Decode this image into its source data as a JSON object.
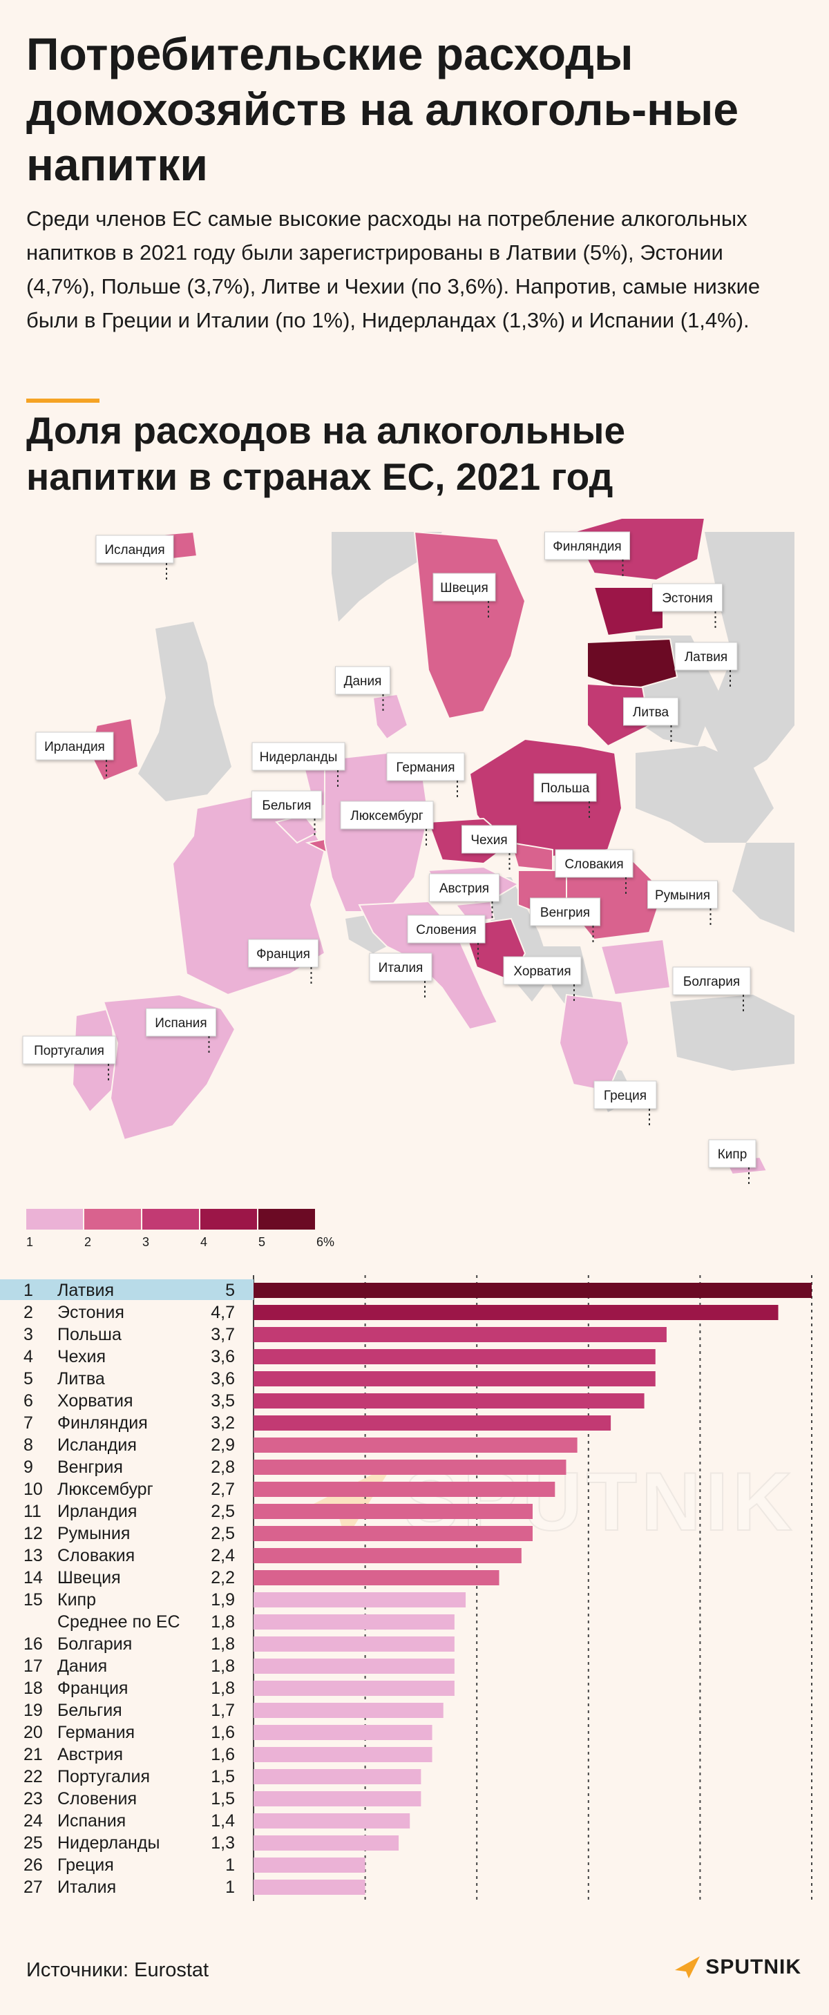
{
  "title": "Потребительские расходы домохозяйств на алкоголь-ные напитки",
  "lead": "Среди членов ЕС самые высокие расходы на потребление алкогольных напитков в 2021 году были зарегистрированы в Латвии (5%), Эстонии (4,7%), Польше (3,7%), Литве и Чехии (по 3,6%). Напротив, самые низкие были в Греции и Италии (по 1%), Нидерландах (1,3%) и Испании (1,4%).",
  "subtitle": "Доля расходов на алкогольные напитки в странах ЕС, 2021 год",
  "colors": {
    "background": "#fdf5ee",
    "accent": "#f5a324",
    "nonEU": "#d6d6d6",
    "highlight_row": "#b8dbe8",
    "scale": [
      "#ebb2d6",
      "#d9628e",
      "#c23a73",
      "#9c1648",
      "#6b0a24"
    ]
  },
  "legend": {
    "ticks": [
      "1",
      "2",
      "3",
      "4",
      "5",
      "6%"
    ]
  },
  "map_labels": [
    "Исландия",
    "Финляндия",
    "Эстония",
    "Швеция",
    "Латвия",
    "Дания",
    "Литва",
    "Ирландия",
    "Нидерланды",
    "Германия",
    "Польша",
    "Бельгия",
    "Люксембург",
    "Чехия",
    "Словакия",
    "Австрия",
    "Румыния",
    "Венгрия",
    "Словения",
    "Франция",
    "Италия",
    "Хорватия",
    "Болгария",
    "Испания",
    "Португалия",
    "Греция",
    "Кипр"
  ],
  "chart_data": {
    "type": "bar",
    "orientation": "horizontal",
    "xlim": [
      0,
      5
    ],
    "x_ticks": [
      "0",
      "1",
      "2",
      "3",
      "4",
      "5"
    ],
    "grid": "vertical dashed",
    "rows": [
      {
        "rank": "1",
        "country": "Латвия",
        "label": "5",
        "value": 5
      },
      {
        "rank": "2",
        "country": "Эстония",
        "label": "4,7",
        "value": 4.7
      },
      {
        "rank": "3",
        "country": "Польша",
        "label": "3,7",
        "value": 3.7
      },
      {
        "rank": "4",
        "country": "Чехия",
        "label": "3,6",
        "value": 3.6
      },
      {
        "rank": "5",
        "country": "Литва",
        "label": "3,6",
        "value": 3.6
      },
      {
        "rank": "6",
        "country": "Хорватия",
        "label": "3,5",
        "value": 3.5
      },
      {
        "rank": "7",
        "country": "Финляндия",
        "label": "3,2",
        "value": 3.2
      },
      {
        "rank": "8",
        "country": "Исландия",
        "label": "2,9",
        "value": 2.9
      },
      {
        "rank": "9",
        "country": "Венгрия",
        "label": "2,8",
        "value": 2.8
      },
      {
        "rank": "10",
        "country": "Люксембург",
        "label": "2,7",
        "value": 2.7
      },
      {
        "rank": "11",
        "country": "Ирландия",
        "label": "2,5",
        "value": 2.5
      },
      {
        "rank": "12",
        "country": "Румыния",
        "label": "2,5",
        "value": 2.5
      },
      {
        "rank": "13",
        "country": "Словакия",
        "label": "2,4",
        "value": 2.4
      },
      {
        "rank": "14",
        "country": "Швеция",
        "label": "2,2",
        "value": 2.2
      },
      {
        "rank": "15",
        "country": "Кипр",
        "label": "1,9",
        "value": 1.9
      },
      {
        "rank": "",
        "country": "Среднее по ЕС",
        "label": "1,8",
        "value": 1.8
      },
      {
        "rank": "16",
        "country": "Болгария",
        "label": "1,8",
        "value": 1.8
      },
      {
        "rank": "17",
        "country": "Дания",
        "label": "1,8",
        "value": 1.8
      },
      {
        "rank": "18",
        "country": "Франция",
        "label": "1,8",
        "value": 1.8
      },
      {
        "rank": "19",
        "country": "Бельгия",
        "label": "1,7",
        "value": 1.7
      },
      {
        "rank": "20",
        "country": "Германия",
        "label": "1,6",
        "value": 1.6
      },
      {
        "rank": "21",
        "country": "Австрия",
        "label": "1,6",
        "value": 1.6
      },
      {
        "rank": "22",
        "country": "Португалия",
        "label": "1,5",
        "value": 1.5
      },
      {
        "rank": "23",
        "country": "Словения",
        "label": "1,5",
        "value": 1.5
      },
      {
        "rank": "24",
        "country": "Испания",
        "label": "1,4",
        "value": 1.4
      },
      {
        "rank": "25",
        "country": "Нидерланды",
        "label": "1,3",
        "value": 1.3
      },
      {
        "rank": "26",
        "country": "Греция",
        "label": "1",
        "value": 1
      },
      {
        "rank": "27",
        "country": "Италия",
        "label": "1",
        "value": 1
      }
    ]
  },
  "source": "Источники: Eurostat",
  "brand": "SPUTNIK"
}
